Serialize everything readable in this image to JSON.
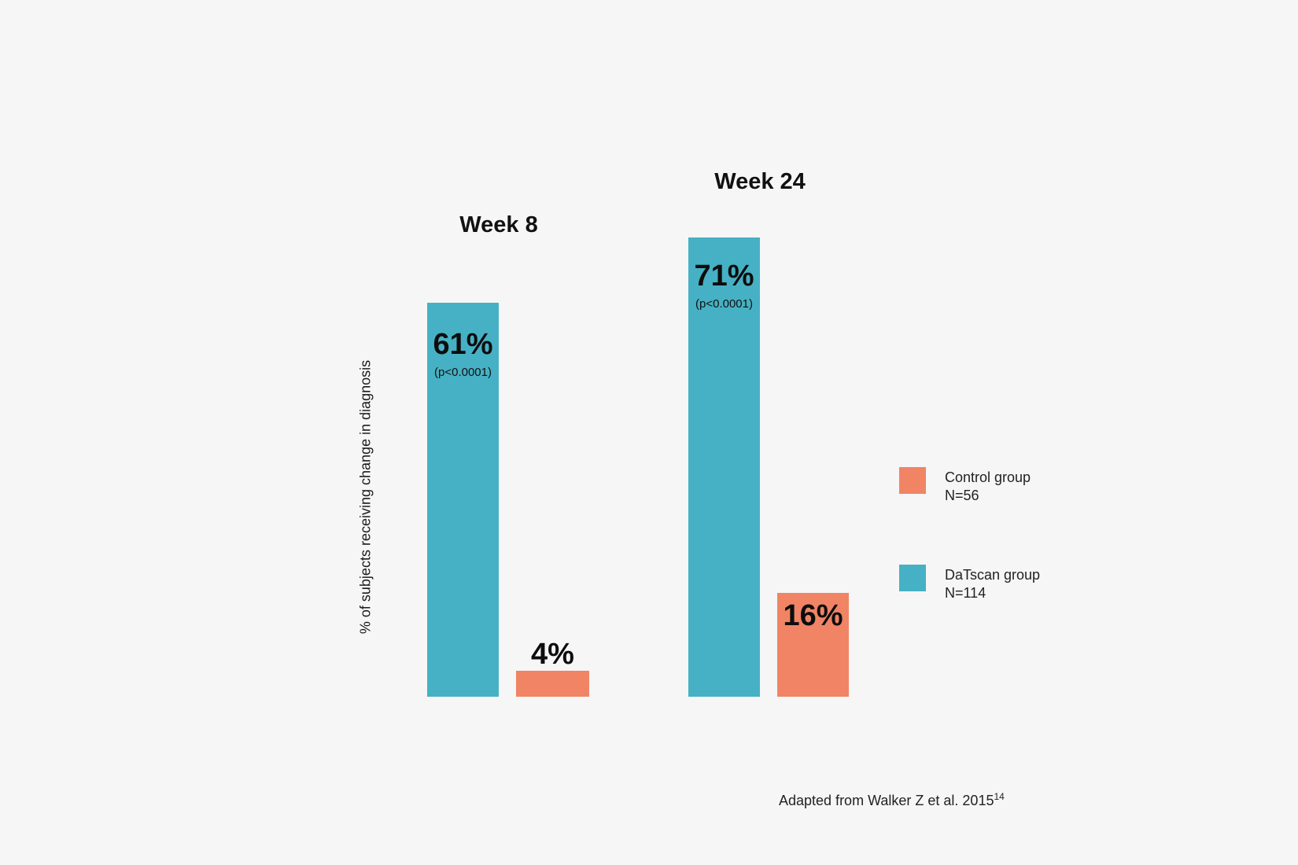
{
  "page": {
    "background_color": "#f6f6f6"
  },
  "chart_data": {
    "type": "bar",
    "title": "",
    "categories": [
      "Week 8",
      "Week 24"
    ],
    "series": [
      {
        "name": "DaTscan group",
        "n_label": "N=114",
        "color": "#46b1c4",
        "values": [
          61,
          71
        ]
      },
      {
        "name": "Control group",
        "n_label": "N=56",
        "color": "#f08465",
        "values": [
          4,
          16
        ]
      }
    ],
    "bars": [
      {
        "group": "Week 8",
        "series": "DaTscan group",
        "value": 61,
        "label": "61%",
        "p_label": "(p<0.0001)"
      },
      {
        "group": "Week 8",
        "series": "Control group",
        "value": 4,
        "label": "4%"
      },
      {
        "group": "Week 24",
        "series": "DaTscan group",
        "value": 71,
        "label": "71%",
        "p_label": "(p<0.0001)"
      },
      {
        "group": "Week 24",
        "series": "Control group",
        "value": 16,
        "label": "16%"
      }
    ],
    "xlabel": "",
    "ylabel": "% of subjects receiving change in diagnosis",
    "ylim": [
      0,
      100
    ],
    "grid": false,
    "axis_lines": false,
    "legend_position": "right"
  },
  "legend": {
    "entries": [
      {
        "label": "Control group",
        "n": "N=56",
        "color": "#f08465"
      },
      {
        "label": "DaTscan group",
        "n": "N=114",
        "color": "#46b1c4"
      }
    ]
  },
  "footer": {
    "citation": "Adapted from Walker Z et al. 2015",
    "reference_number": "14"
  }
}
